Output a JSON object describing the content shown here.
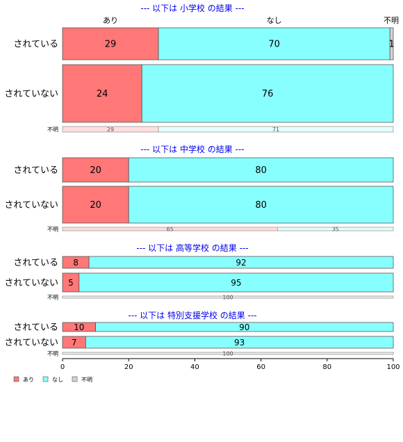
{
  "chart_data": {
    "type": "bar",
    "orientation": "horizontal",
    "stacked": true,
    "column_labels": [
      "あり",
      "なし",
      "不明"
    ],
    "colors": {
      "あり": "#ff7777",
      "なし": "#88ffff",
      "不明": "#d3d3d3"
    },
    "faded_colors": {
      "あり": "#ffdede",
      "なし": "#e3ffff",
      "不明": "#eeeeee"
    },
    "xlim": [
      0,
      100
    ],
    "x_ticks": [
      "0",
      "20",
      "40",
      "60",
      "80",
      "100"
    ],
    "groups": [
      {
        "title": "--- 以下は 小学校 の結果 ---",
        "rows": [
          {
            "label": "されている",
            "values": [
              29,
              70,
              1
            ],
            "value_labels": [
              "29",
              "70",
              "1"
            ]
          },
          {
            "label": "されていない",
            "values": [
              24,
              76,
              0
            ],
            "value_labels": [
              "24",
              "76",
              ""
            ]
          }
        ],
        "unknown_row": {
          "label": "不明",
          "values": [
            29,
            71,
            0
          ],
          "value_labels": [
            "29",
            "71",
            ""
          ]
        }
      },
      {
        "title": "--- 以下は 中学校 の結果 ---",
        "rows": [
          {
            "label": "されている",
            "values": [
              20,
              80,
              0
            ],
            "value_labels": [
              "20",
              "80",
              ""
            ]
          },
          {
            "label": "されていない",
            "values": [
              20,
              80,
              0
            ],
            "value_labels": [
              "20",
              "80",
              ""
            ]
          }
        ],
        "unknown_row": {
          "label": "不明",
          "values": [
            65,
            35,
            0
          ],
          "value_labels": [
            "65",
            "35",
            ""
          ]
        }
      },
      {
        "title": "--- 以下は 高等学校 の結果 ---",
        "rows": [
          {
            "label": "されている",
            "values": [
              8,
              92,
              0
            ],
            "value_labels": [
              "8",
              "92",
              ""
            ]
          },
          {
            "label": "されていない",
            "values": [
              5,
              95,
              0
            ],
            "value_labels": [
              "5",
              "95",
              ""
            ]
          }
        ],
        "unknown_row": {
          "label": "不明",
          "values": [
            0,
            0,
            100
          ],
          "value_labels": [
            "",
            "",
            "100"
          ]
        }
      },
      {
        "title": "--- 以下は 特別支援学校 の結果 ---",
        "rows": [
          {
            "label": "されている",
            "values": [
              10,
              90,
              0
            ],
            "value_labels": [
              "10",
              "90",
              ""
            ]
          },
          {
            "label": "されていない",
            "values": [
              7,
              93,
              0
            ],
            "value_labels": [
              "7",
              "93",
              ""
            ]
          }
        ],
        "unknown_row": {
          "label": "不明",
          "values": [
            0,
            0,
            100
          ],
          "value_labels": [
            "",
            "",
            "100"
          ]
        }
      }
    ],
    "legend": [
      "あり",
      "なし",
      "不明"
    ],
    "legend_position": "bottom-left"
  }
}
